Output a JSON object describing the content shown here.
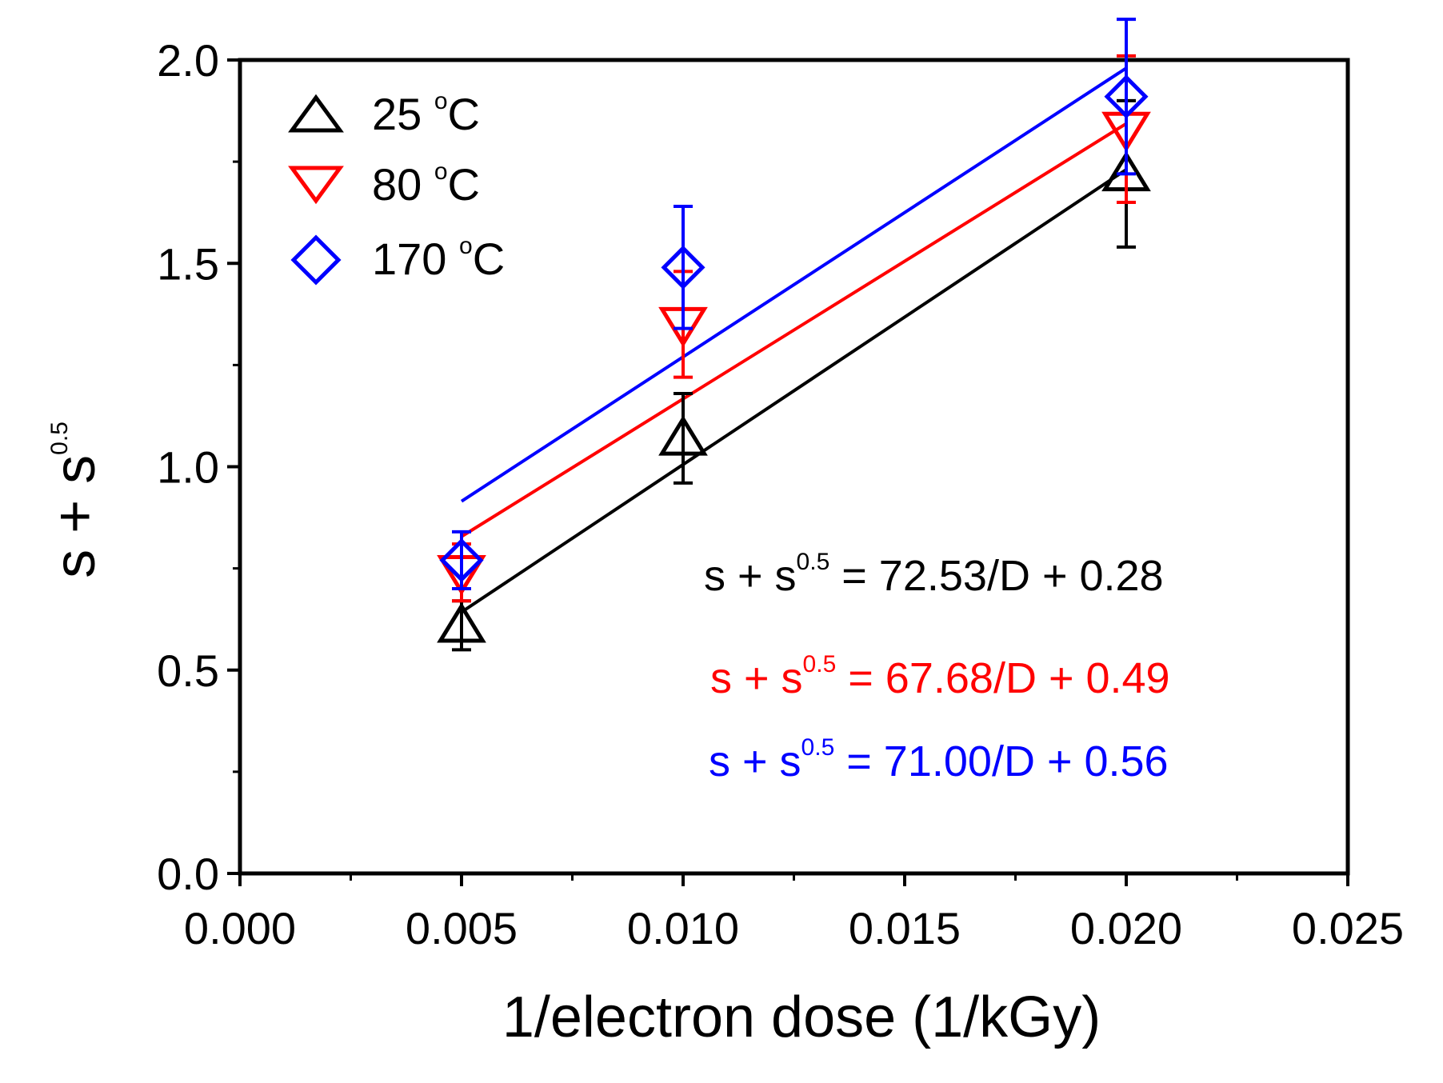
{
  "chart_data": {
    "type": "scatter",
    "title": "",
    "xlabel": "1/electron dose (1/kGy)",
    "ylabel": {
      "base": "s + s",
      "sup": "0.5"
    },
    "xlim": [
      0,
      0.025
    ],
    "ylim": [
      0,
      2.0
    ],
    "x_ticks": [
      "0.000",
      "0.005",
      "0.010",
      "0.015",
      "0.020",
      "0.025"
    ],
    "y_ticks": [
      "0.0",
      "0.5",
      "1.0",
      "1.5",
      "2.0"
    ],
    "series": [
      {
        "name": "25 °C",
        "legend": {
          "value": "25 ",
          "unit_sup": "o",
          "unit": "C"
        },
        "marker": "triangle-up",
        "color": "#000000",
        "x": [
          0.005,
          0.01,
          0.02
        ],
        "y": [
          0.61,
          1.07,
          1.72
        ],
        "err": [
          0.06,
          0.11,
          0.18
        ],
        "fit": {
          "slope": 72.53,
          "intercept": 0.28,
          "x_range": [
            0.005,
            0.02
          ]
        },
        "equation": {
          "lhs": "s + s",
          "sup": "0.5",
          "rhs": " = 72.53/D + 0.28"
        }
      },
      {
        "name": "80 °C",
        "legend": {
          "value": "80 ",
          "unit_sup": "o",
          "unit": "C"
        },
        "marker": "triangle-down",
        "color": "#ff0000",
        "x": [
          0.005,
          0.01,
          0.02
        ],
        "y": [
          0.74,
          1.35,
          1.83
        ],
        "err": [
          0.07,
          0.13,
          0.18
        ],
        "fit": {
          "slope": 67.68,
          "intercept": 0.49,
          "x_range": [
            0.005,
            0.02
          ]
        },
        "equation": {
          "lhs": "s + s",
          "sup": "0.5",
          "rhs": " = 67.68/D + 0.49"
        }
      },
      {
        "name": "170 °C",
        "legend": {
          "value": "170 ",
          "unit_sup": "o",
          "unit": "C"
        },
        "marker": "diamond",
        "color": "#0000ff",
        "x": [
          0.005,
          0.01,
          0.02
        ],
        "y": [
          0.77,
          1.49,
          1.91
        ],
        "err": [
          0.07,
          0.15,
          0.19
        ],
        "fit": {
          "slope": 71.0,
          "intercept": 0.56,
          "x_range": [
            0.005,
            0.02
          ]
        },
        "equation": {
          "lhs": "s + s",
          "sup": "0.5",
          "rhs": " = 71.00/D + 0.56"
        }
      }
    ]
  }
}
